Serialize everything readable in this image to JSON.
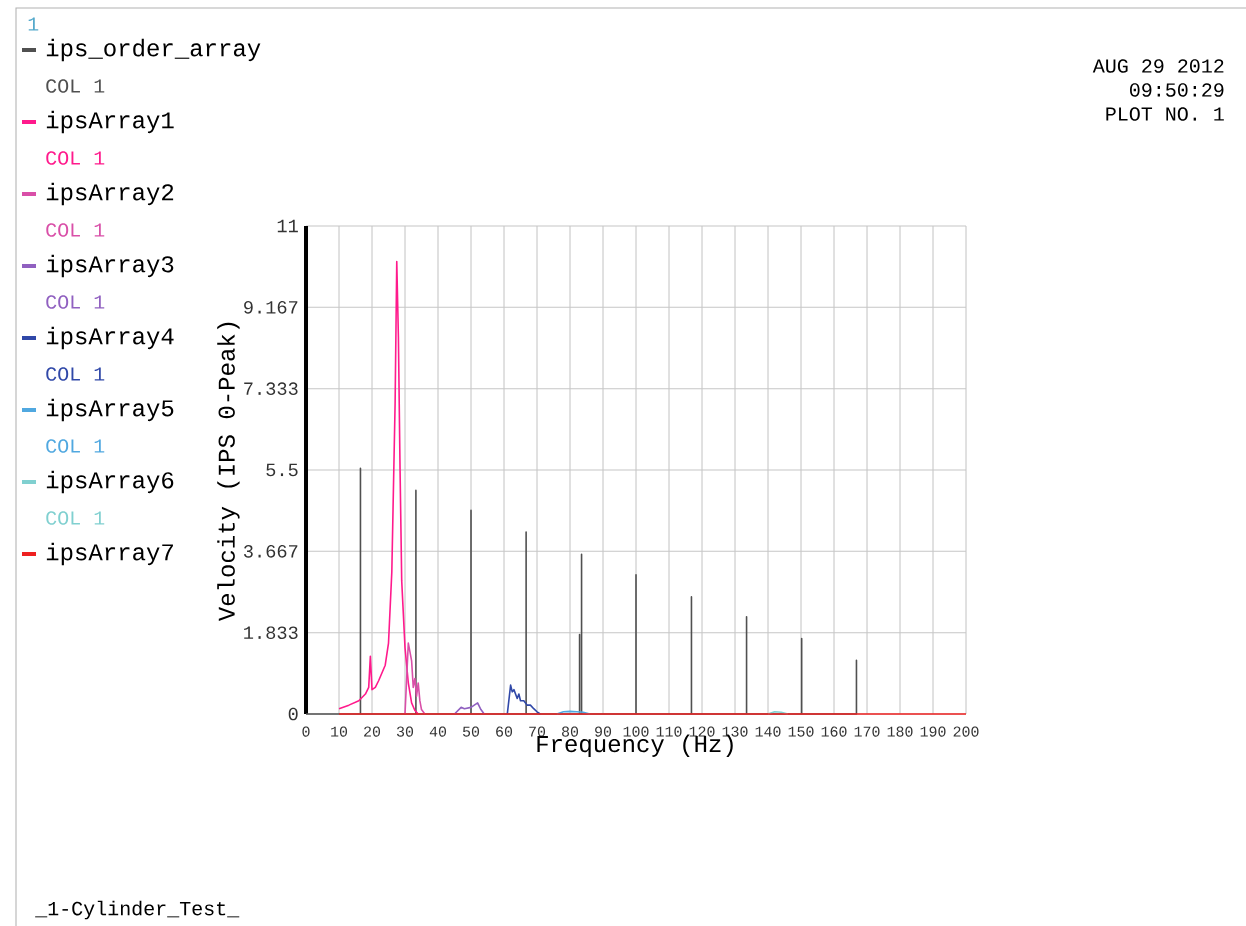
{
  "chart_data": {
    "type": "line",
    "xlabel": "Frequency (Hz)",
    "ylabel": "Velocity (IPS 0-Peak)",
    "xlim": [
      0,
      200
    ],
    "ylim": [
      0,
      11
    ],
    "xticks": [
      0,
      10,
      20,
      30,
      40,
      50,
      60,
      70,
      80,
      90,
      100,
      110,
      120,
      130,
      140,
      150,
      160,
      170,
      180,
      190,
      200
    ],
    "yticks": [
      0,
      1.833,
      3.667,
      5.5,
      7.333,
      9.167,
      11
    ],
    "grid": true,
    "legend": "left",
    "series": [
      {
        "name": "ips_order_array",
        "color": "#505050",
        "x": [
          0,
          16.5,
          16.5,
          16.5,
          33.3,
          33.3,
          33.3,
          50,
          50,
          50,
          66.7,
          66.7,
          66.7,
          82.9,
          82.9,
          82.9,
          83.5,
          83.5,
          83.5,
          100,
          100,
          100,
          116.8,
          116.8,
          116.8,
          133.5,
          133.5,
          133.5,
          150.2,
          150.2,
          150.2,
          166.8,
          166.8,
          166.8
        ],
        "values": [
          0,
          0,
          5.54,
          0,
          0,
          5.04,
          0,
          0,
          4.59,
          0,
          0,
          4.1,
          0,
          0,
          1.79,
          0,
          0,
          3.6,
          0,
          0,
          3.14,
          0,
          0,
          2.64,
          0,
          0,
          2.19,
          0,
          0,
          1.7,
          0,
          0,
          1.21,
          0
        ]
      },
      {
        "name": "ipsArray1",
        "color": "#ff1a8c",
        "x": [
          10,
          13,
          16,
          18,
          19,
          19.5,
          20,
          21,
          22,
          24,
          25,
          26,
          27,
          27.5,
          28,
          28.5,
          29,
          30,
          31,
          32,
          33,
          34
        ],
        "values": [
          0.12,
          0.2,
          0.3,
          0.45,
          0.6,
          1.3,
          0.55,
          0.6,
          0.75,
          1.1,
          1.6,
          3.2,
          7,
          10.2,
          8.5,
          5.5,
          3,
          1.5,
          0.7,
          0.25,
          0.08,
          0
        ]
      },
      {
        "name": "ipsArray2",
        "color": "#d94fa8",
        "x": [
          30,
          31,
          31.5,
          32,
          32.5,
          33,
          33.5,
          34,
          34.5,
          35,
          36
        ],
        "values": [
          0,
          1.6,
          1.4,
          1.2,
          0.6,
          0.8,
          0.4,
          0.7,
          0.3,
          0.1,
          0
        ]
      },
      {
        "name": "ipsArray3",
        "color": "#9060c0",
        "x": [
          45,
          47,
          48,
          50,
          51,
          52,
          53,
          54
        ],
        "values": [
          0,
          0.15,
          0.12,
          0.15,
          0.2,
          0.25,
          0.1,
          0
        ]
      },
      {
        "name": "ipsArray4",
        "color": "#3048a8",
        "x": [
          61,
          62,
          62.5,
          63,
          64,
          64.5,
          65,
          66,
          67,
          68,
          69,
          70,
          71
        ],
        "values": [
          0,
          0.65,
          0.5,
          0.55,
          0.35,
          0.45,
          0.3,
          0.3,
          0.2,
          0.2,
          0.12,
          0.05,
          0
        ]
      },
      {
        "name": "ipsArray5",
        "color": "#50a8e0",
        "x": [
          76,
          78,
          80,
          82,
          84,
          86
        ],
        "values": [
          0,
          0.05,
          0.06,
          0.05,
          0.04,
          0
        ]
      },
      {
        "name": "ipsArray6",
        "color": "#80d0d0",
        "x": [
          140,
          142,
          144,
          146
        ],
        "values": [
          0,
          0.05,
          0.04,
          0
        ]
      },
      {
        "name": "ipsArray7",
        "color": "#ee2020",
        "x": [
          10,
          200
        ],
        "values": [
          0,
          0
        ]
      }
    ],
    "annotations": [
      "1",
      "COL  1",
      "COL  1",
      "COL  1",
      "COL  1",
      "COL  1",
      "COL  1",
      "COL  1",
      "AUG 29 2012",
      "09:50:29",
      "PLOT NO.     1",
      "_1-Cylinder_Test_"
    ]
  }
}
